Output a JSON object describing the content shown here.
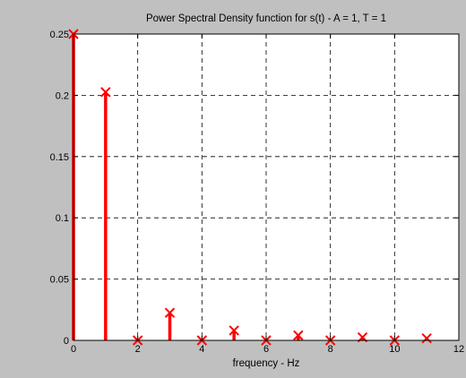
{
  "chart_data": {
    "type": "stem",
    "title": "Power Spectral Density function for s(t) - A = 1, T = 1",
    "xlabel": "frequency - Hz",
    "ylabel": "",
    "xlim": [
      0,
      12
    ],
    "ylim": [
      0,
      0.25
    ],
    "x_ticks": [
      "0",
      "2",
      "4",
      "6",
      "8",
      "10",
      "12"
    ],
    "y_ticks": [
      "0",
      "0.05",
      "0.1",
      "0.15",
      "0.2",
      "0.25"
    ],
    "x_tick_values": [
      0,
      2,
      4,
      6,
      8,
      10,
      12
    ],
    "y_tick_values": [
      0,
      0.05,
      0.1,
      0.15,
      0.2,
      0.25
    ],
    "grid": true,
    "marker": "x",
    "color": "#ff0000",
    "x": [
      0,
      1,
      2,
      3,
      4,
      5,
      6,
      7,
      8,
      9,
      10,
      11
    ],
    "y": [
      0.25,
      0.2026,
      0,
      0.0225,
      0,
      0.0081,
      0,
      0.0041,
      0,
      0.0025,
      0,
      0.0017
    ]
  }
}
